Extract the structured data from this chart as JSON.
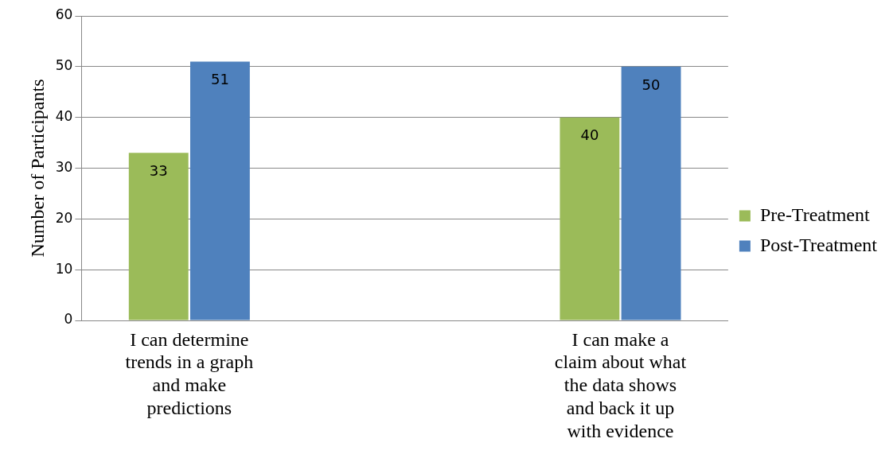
{
  "chart_data": {
    "type": "bar",
    "ylabel": "Number of Participants",
    "categories": [
      "I can determine trends in a graph and make predictions",
      null,
      "I can make a claim about what the data shows and back it up with evidence"
    ],
    "series": [
      {
        "name": "Pre-Treatment",
        "color": "#9bbb59",
        "values": [
          33,
          null,
          40
        ]
      },
      {
        "name": "Post-Treatment",
        "color": "#4f81bd",
        "values": [
          51,
          null,
          50
        ]
      }
    ],
    "ylim": [
      0,
      60
    ],
    "yticks": [
      0,
      10,
      20,
      30,
      40,
      50,
      60
    ],
    "grid": "y",
    "legend": "right",
    "data_labels": true
  }
}
